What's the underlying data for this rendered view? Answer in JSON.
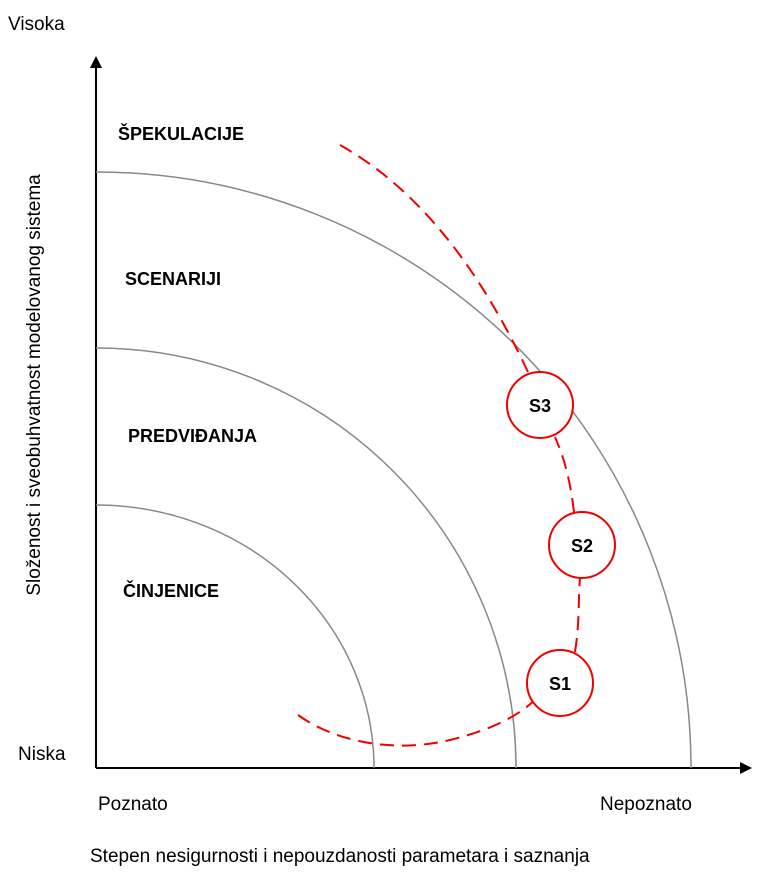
{
  "axes": {
    "y_top": "Visoka",
    "y_bottom": "Niska",
    "y_label": "Složenost i sveobuhvatnost modelovanog sistema",
    "x_left": "Poznato",
    "x_right": "Nepoznato",
    "x_label": "Stepen nesigurnosti i nepouzdanosti parametara i saznanja"
  },
  "zones": [
    "ŠPEKULACIJE",
    "SCENARIJI",
    "PREDVIĐANJA",
    "ČINJENICE"
  ],
  "nodes": [
    {
      "label": "S1"
    },
    {
      "label": "S2"
    },
    {
      "label": "S3"
    }
  ]
}
